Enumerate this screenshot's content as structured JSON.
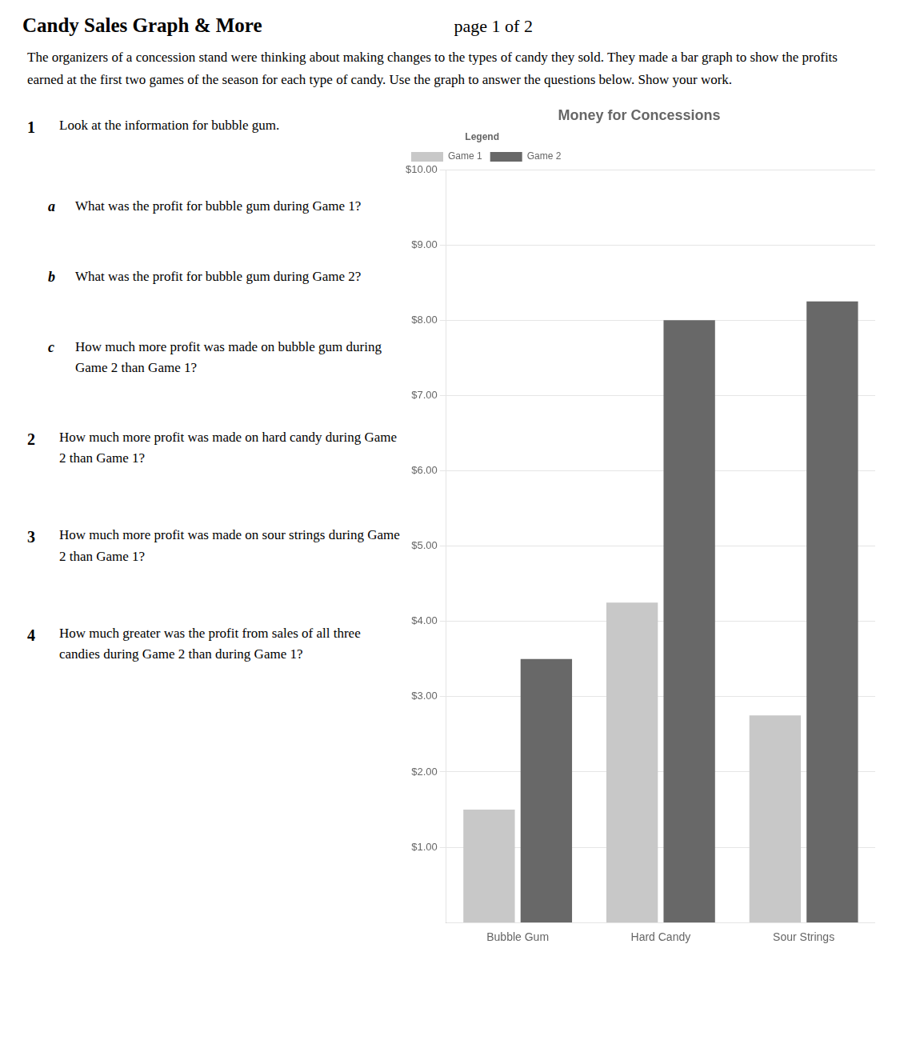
{
  "chart_data": {
    "type": "bar",
    "title": "Money for Concessions",
    "annotations": [
      "Candy Sales Graph & More",
      "page 1 of 2",
      "The organizers of a concession stand were thinking about making changes to the types of candy they sold. They made a bar graph to show the profits earned at the first two games of the season for each type of candy. Use the graph to answer the questions below. Show your work.",
      "1 Look at the information for bubble gum.",
      "a What was the profit for bubble gum during Game 1?",
      "b What was the profit for bubble gum during Game 2?",
      "c How much more profit was made on bubble gum during Game 2 than Game 1?",
      "2 How much more profit was made on hard candy during Game 2 than Game 1?",
      "3 How much more profit was made on sour strings during Game 2 than Game 1?",
      "4 How much greater was the profit from sales of all three candies during Game 2 than during Game 1?"
    ],
    "categories": [
      "Bubble Gum",
      "Hard Candy",
      "Sour Strings"
    ],
    "series": [
      {
        "name": "Game 1",
        "color": "#c8c8c8",
        "values": [
          1.5,
          4.25,
          2.75
        ]
      },
      {
        "name": "Game 2",
        "color": "#686868",
        "values": [
          3.5,
          8.0,
          8.25
        ]
      }
    ],
    "ylim": [
      0,
      10.0
    ],
    "yticks": [
      {
        "value": 1,
        "label": "$1.00"
      },
      {
        "value": 2,
        "label": "$2.00"
      },
      {
        "value": 3,
        "label": "$3.00"
      },
      {
        "value": 4,
        "label": "$4.00"
      },
      {
        "value": 5,
        "label": "$5.00"
      },
      {
        "value": 6,
        "label": "$6.00"
      },
      {
        "value": 7,
        "label": "$7.00"
      },
      {
        "value": 8,
        "label": "$8.00"
      },
      {
        "value": 9,
        "label": "$9.00"
      },
      {
        "value": 10,
        "label": "$10.00"
      }
    ],
    "grid": true,
    "legend": "upper left",
    "legend_title": "Legend"
  }
}
